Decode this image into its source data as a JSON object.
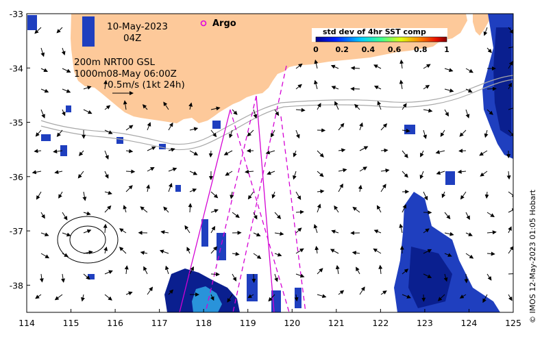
{
  "map": {
    "date_line": "10-May-2023",
    "time_line": "04Z",
    "depth_line1": "200m  NRT00 GSL",
    "depth_line2": "1000m08-May 06:00Z",
    "scale_label": "0.5m/s (1kt 24h)",
    "credit": "© IMOS 12-May-2023 01:05 Hobart",
    "argo_label": "Argo",
    "legend": {
      "title": "std dev of 4hr SST comp",
      "ticks": [
        "0",
        "0.2",
        "0.4",
        "0.6",
        "0.8",
        "1"
      ]
    },
    "colors": {
      "land": "#fdc99a",
      "sst_patch": "#1f3fbf",
      "sst_patch_dark": "#0a1f8f",
      "sst_bright": "#2fa8e8",
      "track": "#d400d4",
      "argo": "#e000e0",
      "contour": "#a8a8a8"
    },
    "x_axis": {
      "ticks": [
        "114",
        "115",
        "116",
        "117",
        "118",
        "119",
        "120",
        "121",
        "122",
        "123",
        "124",
        "125"
      ],
      "range": [
        114,
        125
      ]
    },
    "y_axis": {
      "ticks": [
        "-33",
        "-34",
        "-35",
        "-36",
        "-37",
        "-38"
      ],
      "range": [
        -38.5,
        -33
      ]
    }
  }
}
